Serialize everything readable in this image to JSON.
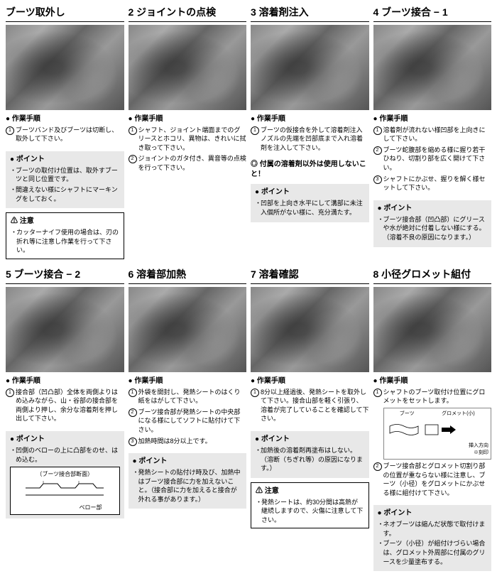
{
  "steps": [
    {
      "num": "",
      "title": "ブーツ取外し",
      "procHead": "作業手順",
      "proc": [
        "ブーツバンド及びブーツは切断し、取外して下さい。"
      ],
      "pointHead": "ポイント",
      "points": [
        "ブーツの取付け位置は、取外すブーツと同じ位置です。",
        "間違えない様にシャフトにマーキングをしておく。"
      ],
      "warnHead": "注意",
      "warns": [
        "カッターナイフ使用の場合は、刃の折れ等に注意し作業を行って下さい。"
      ]
    },
    {
      "num": "2",
      "title": "ジョイントの点検",
      "procHead": "作業手順",
      "proc": [
        "シャフト、ジョイント端面までのグリースとホコリ、異物は、きれいに拭き取って下さい。",
        "ジョイントのガタ付き、異音等の点検を行って下さい。"
      ]
    },
    {
      "num": "3",
      "title": "溶着剤注入",
      "procHead": "作業手順",
      "proc": [
        "ブーツの仮接合を外して溶着剤注入ノズルの先端を凹部底まで入れ溶着剤を注入して下さい。"
      ],
      "bold": "付属の溶着剤以外は使用しないこと！",
      "pointHead": "ポイント",
      "points": [
        "凹部を上向き水平にして溝部に未注入個所がない様に、充分満たす。"
      ]
    },
    {
      "num": "4",
      "title": "ブーツ接合 − 1",
      "procHead": "作業手順",
      "proc": [
        "溶着剤が流れない様凹部を上向きにして下さい。",
        "ブーツ蛇腹部を縮める様に握り若干ひねり、切割り部を広く開けて下さい。",
        "シャフトにかぶせ、握りを解く様セットして下さい。"
      ],
      "pointHead": "ポイント",
      "points": [
        "ブーツ接合部（凹凸部）にグリースや水が絶対に付着しない様にする。（溶着不良の原因になります。）"
      ]
    },
    {
      "num": "5",
      "title": "ブーツ接合 − 2",
      "procHead": "作業手順",
      "proc": [
        "接合部（凹凸部）全体を両側よりはめ込みながら、山・谷部の接合部を両側より押し、余分な溶着剤を押し出して下さい。"
      ],
      "pointHead": "ポイント",
      "points": [
        "凹側のベローの上に凸部をのせ、はめ込む。"
      ],
      "diagram": {
        "label1": "（ブーツ接合部断面）",
        "label2": "ベロー部"
      }
    },
    {
      "num": "6",
      "title": "溶着部加熱",
      "procHead": "作業手順",
      "proc": [
        "外袋を開封し、発熱シートのはくり紙をはがして下さい。",
        "ブーツ接合部が発熱シートの中央部になる様にしてソフトに貼付けて下さい。",
        "加熱時間は8分以上です。"
      ],
      "pointHead": "ポイント",
      "points": [
        "発熱シートの貼付け時及び、加熱中はブーツ接合部に力を加えないこと。（接合部に力を加えると接合が外れる事があります。）"
      ]
    },
    {
      "num": "7",
      "title": "溶着確認",
      "procHead": "作業手順",
      "proc": [
        "8分以上経過後、発熱シートを取外して下さい。接合山部を軽く引張り、溶着が完了していることを確認して下さい。"
      ],
      "pointHead": "ポイント",
      "points": [
        "加熱後の溶着剤再塗布はしない。（溶断（ちぎれ等）の原因になります。）"
      ],
      "warnHead": "注意",
      "warns": [
        "発熱シートは、約30分間は高熱が継続しますので、火傷に注意して下さい。"
      ]
    },
    {
      "num": "8",
      "title": "小径グロメット組付",
      "procHead": "作業手順",
      "proc": [
        "シャフトのブーツ取付け位置にグロメットをセットします。",
        "ブーツ接合部とグロメット切割り部の位置が重ならない様に注意し、ブーツ（小径）をグロメットにかぶせる様に組付けて下さい。"
      ],
      "inset": {
        "l1": "ブーツ",
        "l2": "グロメット(小)",
        "l3": "挿入方向",
        "l4": "※刻印"
      },
      "pointHead": "ポイント",
      "points": [
        "ネオブーツは縮んだ状態で取付けます。",
        "ブーツ（小径）が組付けづらい場合は、グロメット外周部に付属のグリースを少量塗布する。"
      ]
    }
  ]
}
